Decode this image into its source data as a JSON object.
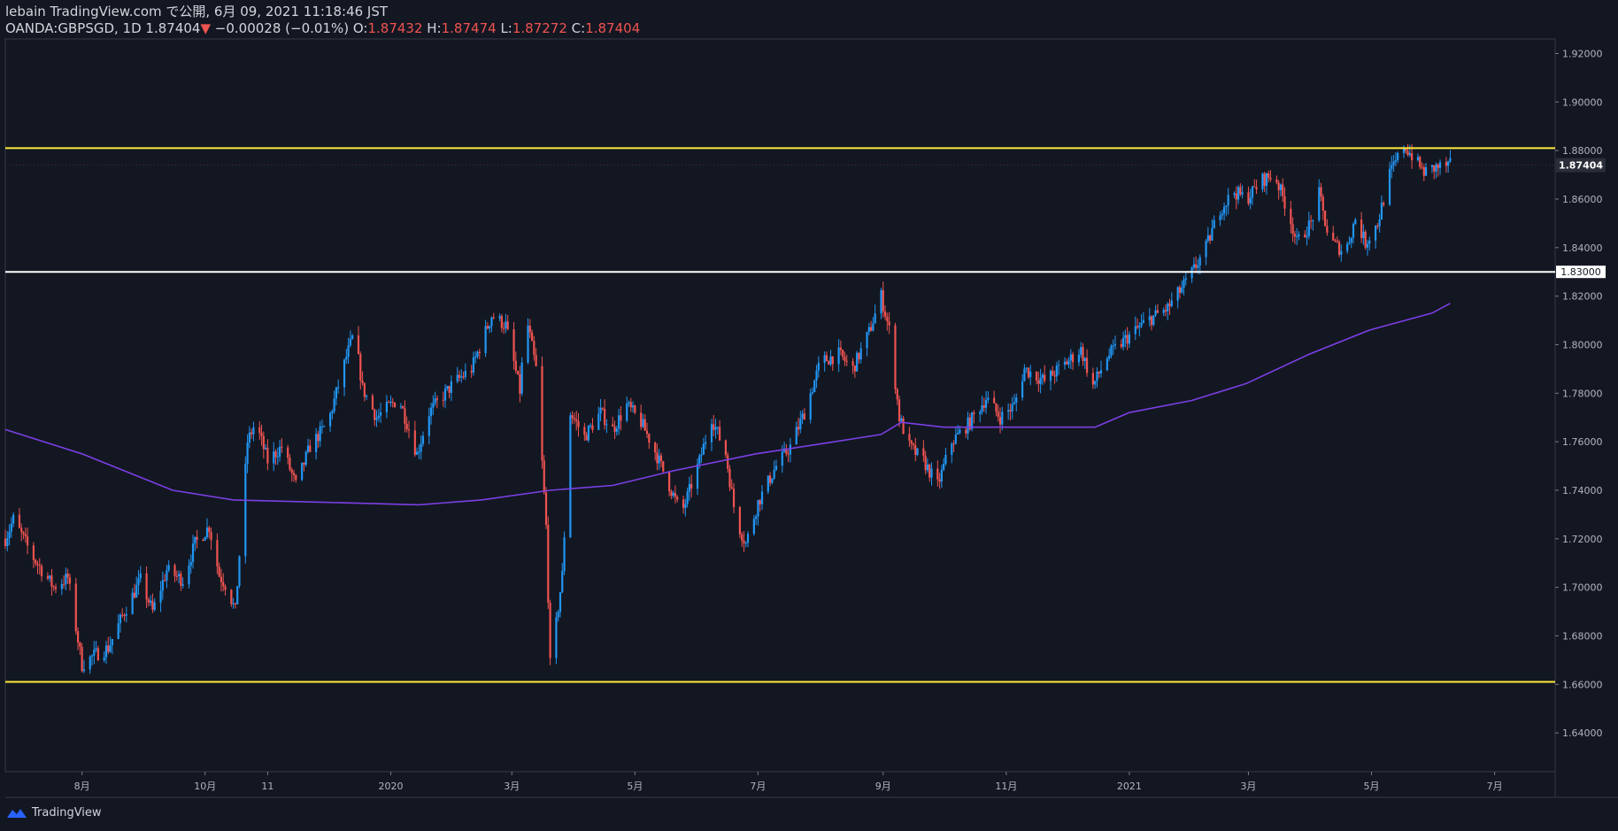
{
  "header": {
    "published_line": "lebain TradingView.com で公開, 6月 09, 2021 11:18:46 JST",
    "symbol_line_prefix": "OANDA:GBPSGD, 1D 1.87404",
    "change_arrow": "▼",
    "change_text": "−0.00028 (−0.01%)",
    "o_label": "O:",
    "o_value": "1.87432",
    "h_label": "H:",
    "h_value": "1.87474",
    "l_label": "L:",
    "l_value": "1.87272",
    "c_label": "C:",
    "c_value": "1.87404"
  },
  "footer": {
    "brand": "TradingView"
  },
  "colors": {
    "background": "#131722",
    "up": "#2196f3",
    "down": "#ef5350",
    "ma": "#7b3fe4",
    "level_yellow": "#ffeb3b",
    "level_white": "#ffffff",
    "axis_text": "#b2b5be",
    "grid": "#1e2230"
  },
  "chart_data": {
    "type": "candlestick",
    "symbol": "OANDA:GBPSGD",
    "interval": "1D",
    "ylim": [
      1.624,
      1.926
    ],
    "y_ticks": [
      "1.64000",
      "1.66000",
      "1.68000",
      "1.70000",
      "1.72000",
      "1.74000",
      "1.76000",
      "1.78000",
      "1.80000",
      "1.82000",
      "1.84000",
      "1.86000",
      "1.88000",
      "1.90000",
      "1.92000"
    ],
    "x_ticks": [
      "8月",
      "10月",
      "11",
      "2020",
      "3月",
      "5月",
      "7月",
      "9月",
      "11月",
      "2021",
      "3月",
      "5月",
      "7月"
    ],
    "x_tick_dates": [
      "2019-08-01",
      "2019-10-01",
      "2019-11-01",
      "2020-01-01",
      "2020-03-01",
      "2020-05-01",
      "2020-07-01",
      "2020-09-01",
      "2020-11-01",
      "2021-01-01",
      "2021-03-01",
      "2021-05-01",
      "2021-07-01"
    ],
    "x_range": [
      "2019-06-24",
      "2021-07-31"
    ],
    "price_path": [
      [
        "2019-06-24",
        1.72
      ],
      [
        "2019-06-28",
        1.728
      ],
      [
        "2019-07-08",
        1.712
      ],
      [
        "2019-07-18",
        1.7
      ],
      [
        "2019-07-25",
        1.704
      ],
      [
        "2019-08-01",
        1.668
      ],
      [
        "2019-08-07",
        1.672
      ],
      [
        "2019-08-14",
        1.675
      ],
      [
        "2019-08-22",
        1.69
      ],
      [
        "2019-08-30",
        1.703
      ],
      [
        "2019-09-05",
        1.69
      ],
      [
        "2019-09-12",
        1.707
      ],
      [
        "2019-09-20",
        1.703
      ],
      [
        "2019-09-26",
        1.718
      ],
      [
        "2019-10-03",
        1.725
      ],
      [
        "2019-10-08",
        1.705
      ],
      [
        "2019-10-12",
        1.7
      ],
      [
        "2019-10-16",
        1.69
      ],
      [
        "2019-10-22",
        1.76
      ],
      [
        "2019-10-26",
        1.768
      ],
      [
        "2019-11-01",
        1.752
      ],
      [
        "2019-11-08",
        1.758
      ],
      [
        "2019-11-15",
        1.742
      ],
      [
        "2019-11-22",
        1.758
      ],
      [
        "2019-12-01",
        1.768
      ],
      [
        "2019-12-10",
        1.795
      ],
      [
        "2019-12-14",
        1.805
      ],
      [
        "2019-12-18",
        1.782
      ],
      [
        "2019-12-25",
        1.77
      ],
      [
        "2020-01-05",
        1.778
      ],
      [
        "2020-01-14",
        1.755
      ],
      [
        "2020-01-20",
        1.772
      ],
      [
        "2020-02-01",
        1.784
      ],
      [
        "2020-02-10",
        1.79
      ],
      [
        "2020-02-20",
        1.812
      ],
      [
        "2020-02-27",
        1.808
      ],
      [
        "2020-03-05",
        1.781
      ],
      [
        "2020-03-08",
        1.812
      ],
      [
        "2020-03-13",
        1.79
      ],
      [
        "2020-03-18",
        1.725
      ],
      [
        "2020-03-20",
        1.668
      ],
      [
        "2020-03-23",
        1.685
      ],
      [
        "2020-03-26",
        1.705
      ],
      [
        "2020-03-30",
        1.772
      ],
      [
        "2020-04-06",
        1.762
      ],
      [
        "2020-04-14",
        1.772
      ],
      [
        "2020-04-20",
        1.765
      ],
      [
        "2020-04-27",
        1.775
      ],
      [
        "2020-05-04",
        1.768
      ],
      [
        "2020-05-10",
        1.758
      ],
      [
        "2020-05-18",
        1.742
      ],
      [
        "2020-05-24",
        1.73
      ],
      [
        "2020-06-02",
        1.752
      ],
      [
        "2020-06-08",
        1.77
      ],
      [
        "2020-06-15",
        1.755
      ],
      [
        "2020-06-20",
        1.728
      ],
      [
        "2020-06-25",
        1.718
      ],
      [
        "2020-07-01",
        1.735
      ],
      [
        "2020-07-10",
        1.75
      ],
      [
        "2020-07-17",
        1.758
      ],
      [
        "2020-07-24",
        1.772
      ],
      [
        "2020-08-01",
        1.793
      ],
      [
        "2020-08-10",
        1.796
      ],
      [
        "2020-08-17",
        1.79
      ],
      [
        "2020-08-25",
        1.805
      ],
      [
        "2020-08-31",
        1.82
      ],
      [
        "2020-09-04",
        1.806
      ],
      [
        "2020-09-09",
        1.77
      ],
      [
        "2020-09-14",
        1.758
      ],
      [
        "2020-09-21",
        1.752
      ],
      [
        "2020-09-28",
        1.742
      ],
      [
        "2020-10-05",
        1.76
      ],
      [
        "2020-10-14",
        1.768
      ],
      [
        "2020-10-22",
        1.778
      ],
      [
        "2020-10-29",
        1.77
      ],
      [
        "2020-11-05",
        1.775
      ],
      [
        "2020-11-10",
        1.79
      ],
      [
        "2020-11-20",
        1.785
      ],
      [
        "2020-11-30",
        1.792
      ],
      [
        "2020-12-08",
        1.798
      ],
      [
        "2020-12-14",
        1.783
      ],
      [
        "2020-12-21",
        1.795
      ],
      [
        "2020-12-31",
        1.803
      ],
      [
        "2021-01-10",
        1.81
      ],
      [
        "2021-01-20",
        1.815
      ],
      [
        "2021-01-31",
        1.828
      ],
      [
        "2021-02-08",
        1.84
      ],
      [
        "2021-02-15",
        1.856
      ],
      [
        "2021-02-22",
        1.863
      ],
      [
        "2021-02-28",
        1.86
      ],
      [
        "2021-03-08",
        1.868
      ],
      [
        "2021-03-14",
        1.87
      ],
      [
        "2021-03-21",
        1.854
      ],
      [
        "2021-03-25",
        1.842
      ],
      [
        "2021-04-01",
        1.85
      ],
      [
        "2021-04-05",
        1.862
      ],
      [
        "2021-04-10",
        1.843
      ],
      [
        "2021-04-18",
        1.838
      ],
      [
        "2021-04-23",
        1.852
      ],
      [
        "2021-04-28",
        1.842
      ],
      [
        "2021-05-04",
        1.85
      ],
      [
        "2021-05-10",
        1.87
      ],
      [
        "2021-05-17",
        1.882
      ],
      [
        "2021-05-21",
        1.878
      ],
      [
        "2021-05-27",
        1.871
      ],
      [
        "2021-06-02",
        1.873
      ],
      [
        "2021-06-09",
        1.874
      ]
    ],
    "moving_average": [
      [
        "2019-06-24",
        1.765
      ],
      [
        "2019-08-01",
        1.755
      ],
      [
        "2019-09-15",
        1.74
      ],
      [
        "2019-10-15",
        1.736
      ],
      [
        "2019-12-01",
        1.735
      ],
      [
        "2020-01-15",
        1.734
      ],
      [
        "2020-02-15",
        1.736
      ],
      [
        "2020-03-20",
        1.74
      ],
      [
        "2020-04-20",
        1.742
      ],
      [
        "2020-05-20",
        1.748
      ],
      [
        "2020-06-30",
        1.755
      ],
      [
        "2020-07-31",
        1.759
      ],
      [
        "2020-08-31",
        1.763
      ],
      [
        "2020-09-10",
        1.768
      ],
      [
        "2020-10-01",
        1.766
      ],
      [
        "2020-11-15",
        1.766
      ],
      [
        "2020-12-15",
        1.766
      ],
      [
        "2021-01-01",
        1.772
      ],
      [
        "2021-02-01",
        1.777
      ],
      [
        "2021-02-28",
        1.784
      ],
      [
        "2021-03-31",
        1.796
      ],
      [
        "2021-04-30",
        1.806
      ],
      [
        "2021-05-31",
        1.813
      ],
      [
        "2021-06-09",
        1.817
      ]
    ],
    "horizontal_lines": [
      {
        "price": 1.881,
        "color": "#ffeb3b"
      },
      {
        "price": 1.83,
        "color": "#ffffff",
        "label": "1.83000"
      },
      {
        "price": 1.661,
        "color": "#ffeb3b"
      }
    ],
    "last_price_label": "1.87404",
    "grid": false
  }
}
